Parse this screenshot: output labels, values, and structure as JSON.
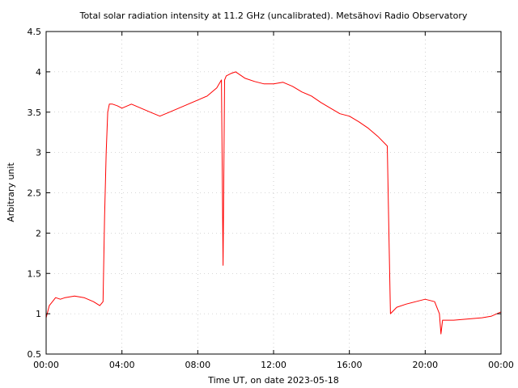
{
  "chart_data": {
    "type": "line",
    "title": "Total solar radiation intensity at 11.2 GHz (uncalibrated). Metsähovi Radio Observatory",
    "xlabel": "Time UT, on date 2023-05-18",
    "ylabel": "Arbitrary unit",
    "xlim": [
      "00:00",
      "24:00"
    ],
    "ylim": [
      0.5,
      4.5
    ],
    "x_tick_labels": [
      "00:00",
      "04:00",
      "08:00",
      "12:00",
      "16:00",
      "20:00",
      "00:00"
    ],
    "y_ticks": [
      0.5,
      1,
      1.5,
      2,
      2.5,
      3,
      3.5,
      4,
      4.5
    ],
    "y_tick_labels": [
      "0.5",
      "1",
      "1.5",
      "2",
      "2.5",
      "3",
      "3.5",
      "4",
      "4.5"
    ],
    "grid": true,
    "legend": "none",
    "line_color": "#ff0000",
    "series": [
      {
        "x": [
          "00:00",
          "00:10",
          "00:20",
          "00:30",
          "00:45",
          "01:00",
          "01:30",
          "02:00",
          "02:30",
          "02:50",
          "03:00",
          "03:05",
          "03:10",
          "03:15",
          "03:20",
          "03:30",
          "03:45",
          "04:00",
          "04:30",
          "05:00",
          "05:30",
          "06:00",
          "06:30",
          "07:00",
          "07:30",
          "08:00",
          "08:30",
          "09:00",
          "09:15",
          "09:20",
          "09:25",
          "09:30",
          "09:45",
          "10:00",
          "10:30",
          "11:00",
          "11:30",
          "12:00",
          "12:30",
          "13:00",
          "13:30",
          "14:00",
          "14:30",
          "15:00",
          "15:30",
          "16:00",
          "16:30",
          "17:00",
          "17:30",
          "18:00",
          "18:05",
          "18:10",
          "18:30",
          "19:00",
          "19:30",
          "20:00",
          "20:30",
          "20:45",
          "20:50",
          "20:55",
          "21:00",
          "21:30",
          "22:00",
          "22:30",
          "23:00",
          "23:30",
          "23:59"
        ],
        "y": [
          0.95,
          1.1,
          1.15,
          1.2,
          1.18,
          1.2,
          1.22,
          1.2,
          1.15,
          1.1,
          1.15,
          2.2,
          3.0,
          3.5,
          3.6,
          3.6,
          3.58,
          3.55,
          3.6,
          3.55,
          3.5,
          3.45,
          3.5,
          3.55,
          3.6,
          3.65,
          3.7,
          3.8,
          3.9,
          1.6,
          3.9,
          3.95,
          3.98,
          4.0,
          3.92,
          3.88,
          3.85,
          3.85,
          3.87,
          3.82,
          3.75,
          3.7,
          3.62,
          3.55,
          3.48,
          3.45,
          3.38,
          3.3,
          3.2,
          3.08,
          2.0,
          1.0,
          1.08,
          1.12,
          1.15,
          1.18,
          1.15,
          1.0,
          0.75,
          0.92,
          0.92,
          0.92,
          0.93,
          0.94,
          0.95,
          0.97,
          1.02
        ]
      }
    ]
  }
}
